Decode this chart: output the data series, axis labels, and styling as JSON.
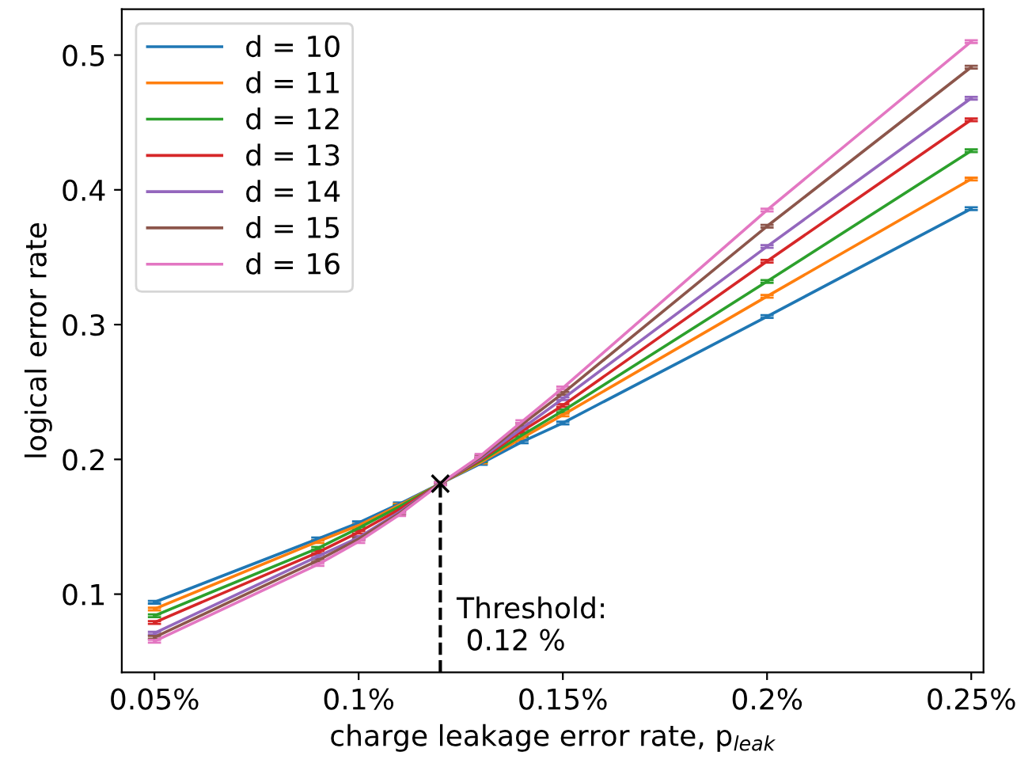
{
  "chart_data": {
    "type": "line",
    "xlabel": "charge leakage error rate, p$_{leak}$",
    "ylabel": "logical error rate",
    "x": [
      0.05,
      0.09,
      0.1,
      0.11,
      0.12,
      0.13,
      0.14,
      0.15,
      0.2,
      0.25
    ],
    "xlim": [
      0.042,
      0.253
    ],
    "xticks": [
      {
        "value": 0.05,
        "label": "0.05%"
      },
      {
        "value": 0.1,
        "label": "0.1%"
      },
      {
        "value": 0.15,
        "label": "0.15%"
      },
      {
        "value": 0.2,
        "label": "0.2%"
      },
      {
        "value": 0.25,
        "label": "0.25%"
      }
    ],
    "ylim": [
      0.042,
      0.534
    ],
    "yticks": [
      0.1,
      0.2,
      0.3,
      0.4,
      0.5
    ],
    "grid": false,
    "legend": "top left",
    "marker": "none",
    "line_style": "solid",
    "series": [
      {
        "name": "d = 10",
        "color": "#1f77b4",
        "values": [
          0.094,
          0.141,
          0.153,
          0.167,
          0.182,
          0.197,
          0.213,
          0.227,
          0.306,
          0.386
        ],
        "errors": [
          0.001,
          0.001,
          0.001,
          0.001,
          0.001,
          0.001,
          0.001,
          0.001,
          0.001,
          0.001
        ]
      },
      {
        "name": "d = 11",
        "color": "#ff7f0e",
        "values": [
          0.089,
          0.139,
          0.151,
          0.166,
          0.182,
          0.198,
          0.216,
          0.233,
          0.321,
          0.408
        ],
        "errors": [
          0.001,
          0.001,
          0.001,
          0.001,
          0.001,
          0.001,
          0.001,
          0.001,
          0.001,
          0.001
        ]
      },
      {
        "name": "d = 12",
        "color": "#2ca02c",
        "values": [
          0.084,
          0.134,
          0.149,
          0.165,
          0.182,
          0.199,
          0.218,
          0.236,
          0.332,
          0.429
        ],
        "errors": [
          0.001,
          0.001,
          0.001,
          0.001,
          0.001,
          0.001,
          0.001,
          0.001,
          0.001,
          0.001
        ]
      },
      {
        "name": "d = 13",
        "color": "#d62728",
        "values": [
          0.079,
          0.131,
          0.146,
          0.163,
          0.182,
          0.2,
          0.221,
          0.24,
          0.347,
          0.452
        ],
        "errors": [
          0.001,
          0.001,
          0.001,
          0.001,
          0.001,
          0.001,
          0.001,
          0.001,
          0.001,
          0.001
        ]
      },
      {
        "name": "d = 14",
        "color": "#9467bd",
        "values": [
          0.071,
          0.128,
          0.142,
          0.161,
          0.182,
          0.201,
          0.223,
          0.245,
          0.358,
          0.468
        ],
        "errors": [
          0.001,
          0.001,
          0.001,
          0.001,
          0.001,
          0.001,
          0.001,
          0.001,
          0.001,
          0.001
        ]
      },
      {
        "name": "d = 15",
        "color": "#8c564b",
        "values": [
          0.068,
          0.125,
          0.141,
          0.16,
          0.182,
          0.202,
          0.226,
          0.249,
          0.373,
          0.491
        ],
        "errors": [
          0.001,
          0.001,
          0.001,
          0.001,
          0.001,
          0.001,
          0.001,
          0.001,
          0.001,
          0.001
        ]
      },
      {
        "name": "d = 16",
        "color": "#e377c2",
        "values": [
          0.065,
          0.122,
          0.139,
          0.159,
          0.182,
          0.203,
          0.228,
          0.253,
          0.385,
          0.51
        ],
        "errors": [
          0.001,
          0.001,
          0.001,
          0.001,
          0.001,
          0.001,
          0.001,
          0.001,
          0.001,
          0.001
        ]
      },
      {
        "type": "scatter",
        "marker": "cross",
        "color": "#000000",
        "x": [
          0.12
        ],
        "values": [
          0.182
        ]
      }
    ],
    "ref_lines": [
      {
        "axis": "x",
        "value": 0.12,
        "label": "Threshold:\n 0.12 %",
        "color": "#000000",
        "line_style": "dashed"
      }
    ]
  }
}
